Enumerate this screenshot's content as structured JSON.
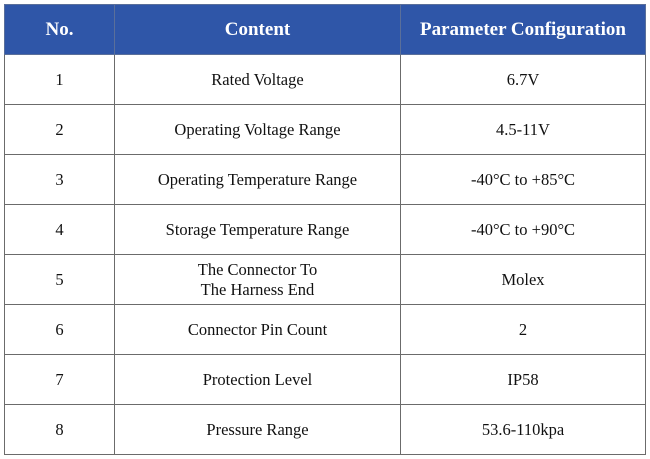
{
  "table": {
    "header": [
      "No.",
      "Content",
      "Parameter Configuration"
    ],
    "rows": [
      [
        "1",
        "Rated Voltage",
        "6.7V"
      ],
      [
        "2",
        "Operating Voltage Range",
        "4.5-11V"
      ],
      [
        "3",
        "Operating Temperature Range",
        "-40°C to +85°C"
      ],
      [
        "4",
        "Storage Temperature Range",
        "-40°C to +90°C"
      ],
      [
        "5",
        "The Connector To\nThe Harness End",
        "Molex"
      ],
      [
        "6",
        "Connector Pin Count",
        "2"
      ],
      [
        "7",
        "Protection Level",
        "IP58"
      ],
      [
        "8",
        "Pressure Range",
        "53.6-110kpa"
      ]
    ]
  }
}
